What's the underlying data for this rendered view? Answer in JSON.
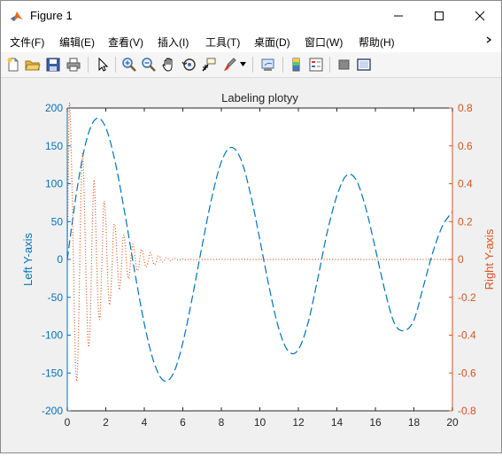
{
  "window": {
    "title": "Figure 1"
  },
  "menu": {
    "items": [
      {
        "label": "文件(F)"
      },
      {
        "label": "编辑(E)"
      },
      {
        "label": "查看(V)"
      },
      {
        "label": "插入(I)"
      },
      {
        "label": "工具(T)"
      },
      {
        "label": "桌面(D)"
      },
      {
        "label": "窗口(W)"
      },
      {
        "label": "帮助(H)"
      }
    ],
    "overflow_icon": "chevron-right-icon"
  },
  "toolbar": {
    "icons": [
      "new-figure-icon",
      "open-file-icon",
      "save-icon",
      "print-icon",
      "edit-plot-icon",
      "zoom-in-icon",
      "zoom-out-icon",
      "pan-icon",
      "rotate-3d-icon",
      "data-cursor-icon",
      "brush-icon",
      "brush-dropdown-icon",
      "link-plot-icon",
      "colorbar-icon",
      "legend-icon",
      "hide-plot-tools-icon",
      "show-plot-tools-icon"
    ]
  },
  "colors": {
    "left": "#0072BD",
    "right": "#D95319",
    "plot_bg": "#ffffff",
    "fig_bg": "#f0f0f0"
  },
  "chart_data": {
    "type": "line",
    "title": "Labeling plotyy",
    "xlabel": "",
    "ylabel_left": "Left Y-axis",
    "ylabel_right": "Right Y-axis",
    "xlim": [
      0,
      20
    ],
    "ylim_left": [
      -200,
      200
    ],
    "ylim_right": [
      -0.8,
      0.8
    ],
    "xticks": [
      "0",
      "2",
      "4",
      "6",
      "8",
      "10",
      "12",
      "14",
      "16",
      "18",
      "20"
    ],
    "yticks_left": [
      "-200",
      "-150",
      "-100",
      "-50",
      "0",
      "50",
      "100",
      "150",
      "200"
    ],
    "yticks_right": [
      "-0.8",
      "-0.6",
      "-0.4",
      "-0.2",
      "0",
      "0.2",
      "0.4",
      "0.6",
      "0.8"
    ],
    "series": [
      {
        "axis": "left",
        "style": "dashed",
        "color": "#0072BD",
        "x": [
          0,
          0.5,
          1,
          1.5,
          2,
          2.5,
          3,
          3.5,
          4,
          4.5,
          5,
          5.5,
          6,
          6.5,
          7,
          7.5,
          8,
          8.5,
          9,
          9.5,
          10,
          10.5,
          11,
          11.5,
          12,
          12.5,
          13,
          13.5,
          14,
          14.5,
          15,
          15.5,
          16,
          16.5,
          17,
          17.5,
          18,
          18.5,
          19,
          19.5,
          20
        ],
        "y": [
          0,
          92,
          158,
          186,
          174,
          127,
          59,
          -16,
          -85,
          -136,
          -160,
          -151,
          -110,
          -49,
          18,
          81,
          129,
          148,
          133,
          88,
          26,
          -39,
          -93,
          -122,
          -119,
          -84,
          -26,
          36,
          84,
          111,
          105,
          68,
          14,
          -42,
          -85,
          -94,
          -80,
          -35,
          11,
          45,
          63
        ]
      },
      {
        "axis": "right",
        "style": "dotted",
        "color": "#D95319",
        "x": [
          0,
          0.1,
          0.2,
          0.3,
          0.4,
          0.5,
          0.6,
          0.7,
          0.8,
          0.9,
          1,
          1.1,
          1.2,
          1.3,
          1.4,
          1.5,
          1.6,
          1.7,
          1.8,
          1.9,
          2,
          2.1,
          2.2,
          2.3,
          2.4,
          2.5,
          2.6,
          2.7,
          2.8,
          2.9,
          3,
          3.1,
          3.2,
          3.3,
          3.4,
          3.5,
          3.6,
          3.7,
          3.8,
          3.9,
          4,
          4.1,
          4.2,
          4.3,
          4.4,
          4.5,
          4.6,
          4.7,
          4.8,
          4.9,
          5,
          5.1,
          5.2,
          5.3,
          5.4,
          5.5,
          5.6,
          5.7,
          5.8,
          5.9,
          6,
          6.1,
          6.2,
          6.3,
          6.4,
          6.5,
          6.6,
          6.7,
          6.8,
          6.9,
          7,
          7.2,
          7.4,
          7.6,
          7.8,
          8,
          8.2,
          8.4,
          8.6,
          8.8,
          9,
          9.5,
          10,
          11,
          12,
          14,
          16,
          18,
          20
        ],
        "y": [
          0,
          0.8,
          0.6,
          0.1,
          -0.45,
          -0.64,
          -0.3,
          0.3,
          0.56,
          0.24,
          -0.2,
          -0.46,
          -0.3,
          0.18,
          0.42,
          0.1,
          -0.24,
          -0.3,
          0.0,
          0.3,
          0.2,
          -0.1,
          -0.24,
          -0.1,
          0.16,
          0.16,
          -0.02,
          -0.16,
          -0.06,
          0.12,
          0.09,
          -0.05,
          -0.1,
          0.0,
          0.08,
          0.03,
          -0.05,
          -0.05,
          0.03,
          0.05,
          -0.01,
          -0.04,
          -0.01,
          0.035,
          0.012,
          -0.026,
          -0.018,
          0.016,
          0.016,
          -0.01,
          -0.012,
          0.006,
          0.01,
          -0.004,
          -0.007,
          0.003,
          0.005,
          -0.002,
          -0.004,
          0.001,
          0.003,
          -0.001,
          -0.002,
          0.001,
          0.002,
          -0.001,
          -0.001,
          0.0005,
          0.0008,
          -0.0005,
          0,
          0,
          0,
          0,
          0,
          0,
          0,
          0,
          0,
          0,
          0,
          0,
          0,
          0,
          0,
          0,
          0,
          0,
          0
        ]
      }
    ]
  }
}
